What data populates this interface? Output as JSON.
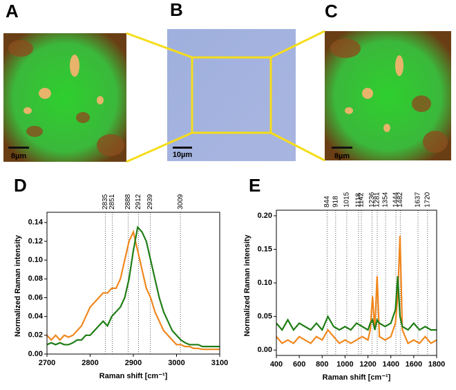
{
  "panels": {
    "a": {
      "label": "A",
      "scale": "8µm"
    },
    "b": {
      "label": "B",
      "scale": "10µm"
    },
    "c": {
      "label": "C",
      "scale": "8µm"
    }
  },
  "chart_data": [
    {
      "type": "line",
      "label": "D",
      "ylabel": "Normalized Raman intensity",
      "xlabel": "Raman shift [cm⁻¹]",
      "xlim": [
        2700,
        3100
      ],
      "xticks": [
        2700,
        2800,
        2900,
        3000,
        3100
      ],
      "ylim": [
        0,
        0.145
      ],
      "yticks": [
        {
          "value": 0,
          "label": "0.00"
        },
        {
          "value": 0.02,
          "label": "0.02"
        },
        {
          "value": 0.04,
          "label": "0.04"
        },
        {
          "value": 0.06,
          "label": "0.06"
        },
        {
          "value": 0.08,
          "label": "0.08"
        },
        {
          "value": 0.1,
          "label": "0.10"
        },
        {
          "value": 0.12,
          "label": "0.12"
        },
        {
          "value": 0.14,
          "label": "0.14"
        }
      ],
      "peaks": [
        2835,
        2851,
        2888,
        2912,
        2939,
        3009
      ],
      "x": [
        2700,
        2710,
        2720,
        2730,
        2740,
        2750,
        2760,
        2770,
        2780,
        2790,
        2800,
        2810,
        2820,
        2830,
        2840,
        2850,
        2860,
        2870,
        2880,
        2890,
        2900,
        2910,
        2920,
        2930,
        2940,
        2950,
        2960,
        2970,
        2980,
        2990,
        3000,
        3010,
        3020,
        3030,
        3040,
        3050,
        3060,
        3070,
        3080,
        3090,
        3100
      ],
      "series": [
        {
          "color": "#f0861c",
          "values": [
            0.02,
            0.015,
            0.02,
            0.015,
            0.02,
            0.018,
            0.02,
            0.025,
            0.03,
            0.04,
            0.05,
            0.055,
            0.06,
            0.065,
            0.065,
            0.07,
            0.07,
            0.08,
            0.1,
            0.12,
            0.13,
            0.11,
            0.09,
            0.07,
            0.06,
            0.045,
            0.035,
            0.025,
            0.02,
            0.015,
            0.01,
            0.01,
            0.008,
            0.008,
            0.006,
            0.006,
            0.005,
            0.005,
            0.005,
            0.005,
            0.005
          ]
        },
        {
          "color": "#1e7d14",
          "values": [
            0.01,
            0.012,
            0.01,
            0.012,
            0.01,
            0.01,
            0.012,
            0.015,
            0.015,
            0.02,
            0.02,
            0.025,
            0.03,
            0.035,
            0.03,
            0.04,
            0.045,
            0.05,
            0.06,
            0.08,
            0.11,
            0.135,
            0.13,
            0.12,
            0.1,
            0.08,
            0.06,
            0.045,
            0.035,
            0.025,
            0.02,
            0.015,
            0.012,
            0.01,
            0.01,
            0.01,
            0.008,
            0.008,
            0.008,
            0.008,
            0.008
          ]
        }
      ]
    },
    {
      "type": "line",
      "label": "E",
      "ylabel": "Normalized Raman intensity",
      "xlabel": "Raman shift [cm⁻¹]",
      "xlim": [
        400,
        1800
      ],
      "xticks": [
        400,
        600,
        800,
        1000,
        1200,
        1400,
        1600,
        1800
      ],
      "ylim": [
        -0.008,
        0.2
      ],
      "yticks": [
        {
          "value": 0,
          "label": "0.00"
        },
        {
          "value": 0.05,
          "label": "0.05"
        },
        {
          "value": 0.1,
          "label": "0.10"
        },
        {
          "value": 0.15,
          "label": "0.15"
        },
        {
          "value": 0.2,
          "label": "0.20"
        }
      ],
      "peaks": [
        844,
        918,
        1015,
        1118,
        1142,
        1236,
        1281,
        1354,
        1444,
        1482,
        1637,
        1720
      ],
      "x": [
        400,
        450,
        500,
        550,
        600,
        650,
        700,
        750,
        800,
        850,
        900,
        950,
        1000,
        1050,
        1100,
        1150,
        1200,
        1220,
        1240,
        1260,
        1280,
        1300,
        1350,
        1400,
        1440,
        1460,
        1480,
        1500,
        1550,
        1600,
        1650,
        1700,
        1750,
        1800
      ],
      "series": [
        {
          "color": "#f0861c",
          "values": [
            0.02,
            0.01,
            0.015,
            0.01,
            0.02,
            0.015,
            0.01,
            0.02,
            0.015,
            0.03,
            0.02,
            0.01,
            0.015,
            0.01,
            0.015,
            0.02,
            0.015,
            0.03,
            0.08,
            0.03,
            0.11,
            0.02,
            0.015,
            0.02,
            0.04,
            0.08,
            0.17,
            0.03,
            0.01,
            0.015,
            0.01,
            0.02,
            0.01,
            0.015
          ]
        },
        {
          "color": "#1e7d14",
          "values": [
            0.04,
            0.03,
            0.045,
            0.03,
            0.04,
            0.035,
            0.03,
            0.04,
            0.03,
            0.05,
            0.035,
            0.03,
            0.035,
            0.03,
            0.04,
            0.035,
            0.03,
            0.04,
            0.045,
            0.03,
            0.045,
            0.04,
            0.035,
            0.04,
            0.06,
            0.11,
            0.05,
            0.035,
            0.03,
            0.04,
            0.03,
            0.035,
            0.03,
            0.03
          ]
        }
      ]
    }
  ]
}
